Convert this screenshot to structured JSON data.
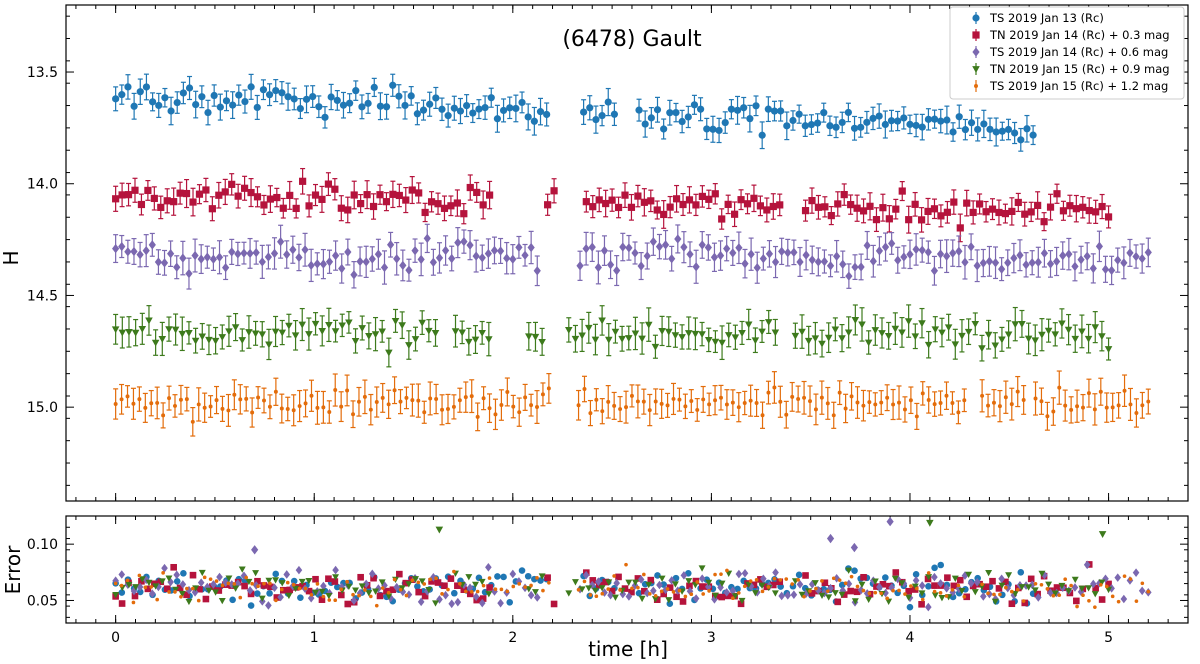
{
  "chart_data": [
    {
      "type": "scatter",
      "title": "(6478) Gault",
      "xlabel": "",
      "ylabel": "H",
      "xlim": [
        -0.25,
        5.4
      ],
      "ylim": [
        15.42,
        13.2
      ],
      "y_inverted": true,
      "grid": false,
      "legend_position": "top-right",
      "yticks": [
        "13.5",
        "14.0",
        "14.5",
        "15.0"
      ],
      "series": [
        {
          "name": "TS 2019 Jan 13  (Rc)",
          "color": "#1f77b4",
          "marker": "circle",
          "x_start": 0.0,
          "x_end": 4.62,
          "n_points": 150,
          "gaps": [
            [
              2.19,
              2.33
            ],
            [
              2.53,
              2.62
            ],
            [
              4.0,
              4.02
            ]
          ],
          "y_start": 13.6,
          "y_end": 13.75,
          "noise": 0.03,
          "err": 0.05
        },
        {
          "name": "TN 2019 Jan 14  (Rc)  + 0.3 mag",
          "color": "#b5133c",
          "marker": "square",
          "x_start": 0.0,
          "x_end": 5.0,
          "n_points": 155,
          "gaps": [
            [
              1.9,
              2.16
            ],
            [
              2.24,
              2.37
            ],
            [
              3.35,
              3.45
            ]
          ],
          "y_start": 14.05,
          "y_end": 14.12,
          "noise": 0.03,
          "err": 0.05
        },
        {
          "name": "TS 2019 Jan 14  (Rc)  + 0.6 mag",
          "color": "#7b68b0",
          "marker": "diamond",
          "x_start": 0.0,
          "x_end": 5.2,
          "n_points": 170,
          "gaps": [
            [
              2.15,
              2.33
            ]
          ],
          "y_start": 14.33,
          "y_end": 14.33,
          "noise": 0.035,
          "err": 0.06
        },
        {
          "name": "TN 2019 Jan 15  (Rc)  + 0.9 mag",
          "color": "#3d7a1c",
          "marker": "triangle_down",
          "x_start": 0.0,
          "x_end": 5.0,
          "n_points": 150,
          "gaps": [
            [
              1.64,
              1.69
            ],
            [
              1.9,
              2.08
            ],
            [
              2.18,
              2.25
            ],
            [
              3.35,
              3.4
            ]
          ],
          "y_start": 14.66,
          "y_end": 14.68,
          "noise": 0.03,
          "err": 0.06
        },
        {
          "name": "TS 2019 Jan 15  (Rc)  + 1.2 mag",
          "color": "#e36c0a",
          "marker": "point",
          "x_start": 0.0,
          "x_end": 5.2,
          "n_points": 175,
          "gaps": [
            [
              2.19,
              2.33
            ],
            [
              4.3,
              4.36
            ],
            [
              4.58,
              4.63
            ]
          ],
          "y_start": 14.98,
          "y_end": 14.98,
          "noise": 0.03,
          "err": 0.06
        }
      ]
    },
    {
      "type": "scatter",
      "title": "",
      "xlabel": "time [h]",
      "ylabel": "Error",
      "xlim": [
        -0.25,
        5.4
      ],
      "ylim": [
        0.03,
        0.125
      ],
      "grid": false,
      "xticks": [
        "0",
        "1",
        "2",
        "3",
        "4",
        "5"
      ],
      "yticks": [
        "0.05",
        "0.10"
      ],
      "residual_level": 0.062,
      "residual_spread": 0.012,
      "outliers": [
        {
          "series": 3,
          "x": 1.63,
          "y": 0.113
        },
        {
          "series": 3,
          "x": 4.1,
          "y": 0.119
        },
        {
          "series": 3,
          "x": 4.97,
          "y": 0.109
        },
        {
          "series": 2,
          "x": 3.6,
          "y": 0.105
        },
        {
          "series": 2,
          "x": 3.9,
          "y": 0.12
        },
        {
          "series": 2,
          "x": 3.72,
          "y": 0.097
        },
        {
          "series": 2,
          "x": 0.7,
          "y": 0.095
        }
      ]
    }
  ]
}
